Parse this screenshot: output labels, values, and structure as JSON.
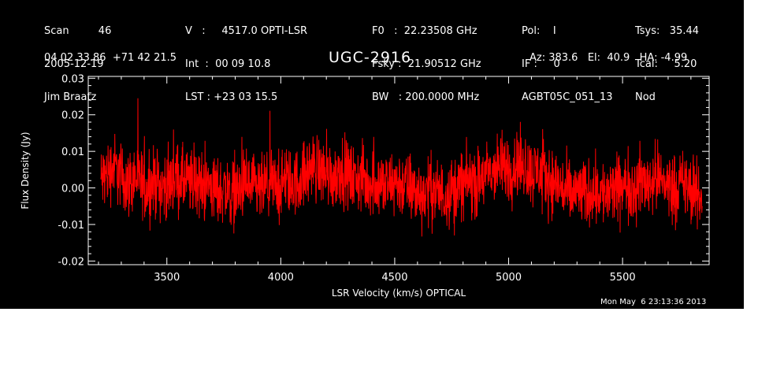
{
  "header": {
    "col1": [
      "Scan         46",
      "2005-12-19",
      "Jim Braatz"
    ],
    "col2": [
      "V   :     4517.0 OPTI-LSR",
      "Int  :  00 09 10.8",
      "LST : +23 03 15.5"
    ],
    "col3": [
      "F0   :  22.23508 GHz",
      "Fsky :  21.90512 GHz",
      "BW   : 200.0000 MHz"
    ],
    "col4": [
      "Pol:    I",
      "IF :     0",
      "AGBT05C_051_13"
    ],
    "col5": [
      "Tsys:   35.44",
      "Tcal:     5.20",
      "Nod"
    ],
    "coords": "04 02 33.86  +71 42 21.5",
    "pointing": "Az: 383.6   El:  40.9   HA: -4.99"
  },
  "timestamp": "Mon May  6 23:13:36 2013",
  "chart_data": {
    "type": "line",
    "title": "UGC-2916",
    "xlabel": "LSR Velocity (km/s) OPTICAL",
    "ylabel": "Flux Density (Jy)",
    "xlim": [
      3155,
      5880
    ],
    "ylim": [
      -0.021,
      0.0305
    ],
    "xticks": [
      3500,
      4000,
      4500,
      5000,
      5500
    ],
    "xtick_labels": [
      "3500",
      "4000",
      "4500",
      "5000",
      "5500"
    ],
    "yticks": [
      -0.02,
      -0.01,
      0.0,
      0.01,
      0.02,
      0.03
    ],
    "ytick_labels": [
      "-0.02",
      "-0.01",
      "0.00",
      "0.01",
      "0.02",
      "0.03"
    ],
    "grid": false,
    "line_color": "#ff0000",
    "series": [
      {
        "x": [
          3210,
          3240,
          3270,
          3300,
          3330,
          3360,
          3390,
          3420,
          3450,
          3480,
          3510,
          3540,
          3570,
          3600,
          3630,
          3660,
          3690,
          3720,
          3750,
          3780,
          3810,
          3840,
          3870,
          3900,
          3930,
          3960,
          3990,
          4020,
          4050,
          4080,
          4110,
          4140,
          4170,
          4200,
          4230,
          4260,
          4290,
          4320,
          4350,
          4380,
          4410,
          4440,
          4470,
          4500,
          4530,
          4560,
          4590,
          4620,
          4650,
          4680,
          4710,
          4740,
          4770,
          4800,
          4830,
          4860,
          4890,
          4920,
          4950,
          4980,
          5010,
          5040,
          5070,
          5100,
          5130,
          5160,
          5190,
          5220,
          5250,
          5280,
          5310,
          5340,
          5370,
          5400,
          5430,
          5460,
          5490,
          5520,
          5550,
          5580,
          5610,
          5640,
          5670,
          5700,
          5730,
          5760,
          5790,
          5820,
          5850
        ],
        "y": [
          0.002,
          0.004,
          0.006,
          0.003,
          0.001,
          0.003,
          0.001,
          0.0,
          0.002,
          0.0,
          0.001,
          0.003,
          0.002,
          0.001,
          0.002,
          0.0,
          0.001,
          -0.001,
          0.0,
          -0.002,
          -0.001,
          0.001,
          0.0,
          -0.001,
          0.0,
          0.001,
          0.0,
          0.002,
          0.001,
          0.002,
          0.004,
          0.006,
          0.005,
          0.004,
          0.003,
          0.005,
          0.004,
          0.002,
          0.003,
          0.001,
          0.002,
          0.001,
          0.0,
          0.002,
          0.001,
          0.0,
          -0.001,
          -0.002,
          0.0,
          -0.001,
          -0.002,
          -0.001,
          0.0,
          0.001,
          0.002,
          0.001,
          0.003,
          0.004,
          0.005,
          0.006,
          0.005,
          0.007,
          0.006,
          0.004,
          0.005,
          0.003,
          0.002,
          0.001,
          -0.001,
          -0.002,
          -0.001,
          -0.002,
          0.0,
          -0.001,
          -0.002,
          -0.001,
          0.0,
          0.001,
          0.0,
          0.002,
          0.001,
          0.003,
          0.002,
          0.001,
          0.0,
          0.001,
          0.0,
          -0.002,
          -0.003
        ]
      }
    ]
  }
}
